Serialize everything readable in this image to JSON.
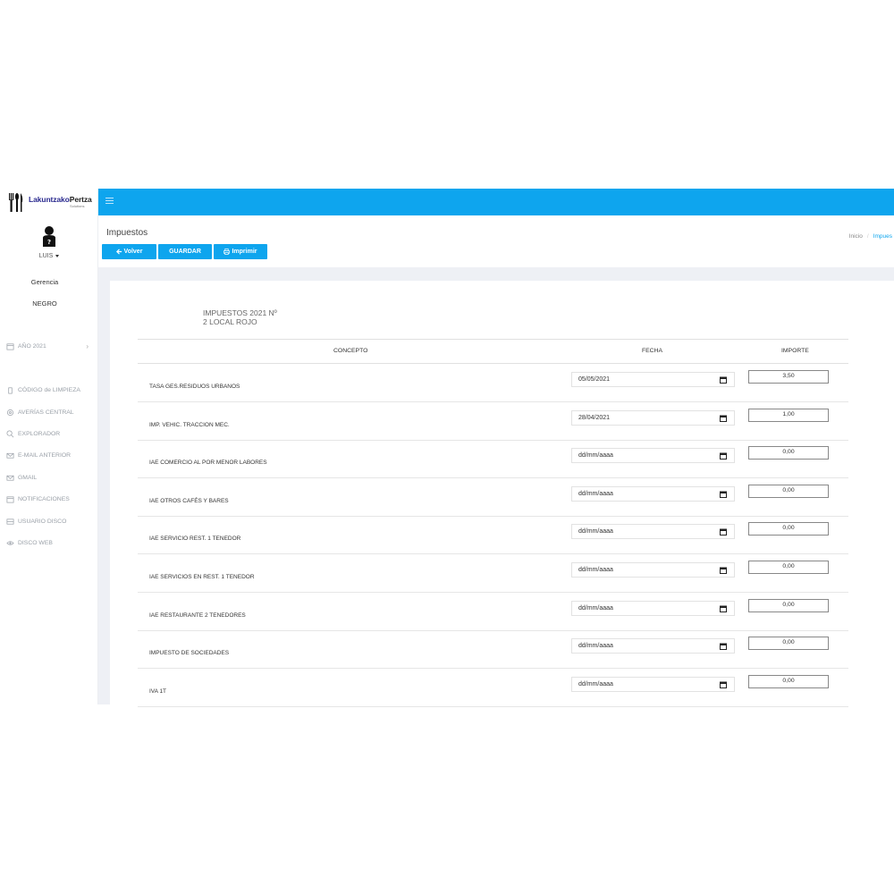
{
  "logo": {
    "part1": "Lakuntzako",
    "part2": "Pertza",
    "sub": "Solutions"
  },
  "user": {
    "name": "LUIS",
    "roles": [
      "Gerencia",
      "NEGRO"
    ]
  },
  "sidebar": {
    "items": [
      {
        "label": "AÑO 2021",
        "icon": "calendar-icon"
      },
      {
        "label": "CÓDIGO de LIMPIEZA",
        "icon": "trash-icon"
      },
      {
        "label": "AVERÍAS CENTRAL",
        "icon": "gear-icon"
      },
      {
        "label": "EXPLORADOR",
        "icon": "search-icon"
      },
      {
        "label": "E-MAIL ANTERIOR",
        "icon": "mail-icon"
      },
      {
        "label": "GMAIL",
        "icon": "mail-icon"
      },
      {
        "label": "NOTIFICACIONES",
        "icon": "calendar-icon"
      },
      {
        "label": "USUARIO DISCO",
        "icon": "drive-icon"
      },
      {
        "label": "DISCO WEB",
        "icon": "eye-icon"
      }
    ]
  },
  "page": {
    "title": "Impuestos",
    "breadcrumb": {
      "home": "Inicio",
      "current": "Impues"
    },
    "buttons": {
      "back": "Volver",
      "save": "GUARDAR",
      "print": "Imprimir"
    }
  },
  "card": {
    "title_line1": "IMPUESTOS 2021 Nº",
    "title_line2": "2 LOCAL ROJO"
  },
  "table": {
    "headers": {
      "concepto": "CONCEPTO",
      "fecha": "FECHA",
      "importe": "IMPORTE"
    },
    "rows": [
      {
        "concepto": "TASA GES.RESIDUOS URBANOS",
        "fecha": "05/05/2021",
        "importe": "3,50"
      },
      {
        "concepto": "IMP. VEHIC. TRACCION MEC.",
        "fecha": "28/04/2021",
        "importe": "1,00"
      },
      {
        "concepto": "IAE COMERCIO AL POR MENOR LABORES",
        "fecha": "dd/mm/aaaa",
        "importe": "0,00"
      },
      {
        "concepto": "IAE OTROS CAFÉS Y BARES",
        "fecha": "dd/mm/aaaa",
        "importe": "0,00"
      },
      {
        "concepto": "IAE SERVICIO REST. 1 TENEDOR",
        "fecha": "dd/mm/aaaa",
        "importe": "0,00"
      },
      {
        "concepto": "IAE SERVICIOS EN REST. 1 TENEDOR",
        "fecha": "dd/mm/aaaa",
        "importe": "0,00"
      },
      {
        "concepto": "IAE RESTAURANTE 2 TENEDORES",
        "fecha": "dd/mm/aaaa",
        "importe": "0,00"
      },
      {
        "concepto": "IMPUESTO DE SOCIEDADES",
        "fecha": "dd/mm/aaaa",
        "importe": "0,00"
      },
      {
        "concepto": "IVA 1T",
        "fecha": "dd/mm/aaaa",
        "importe": "0,00"
      }
    ]
  },
  "colors": {
    "accent": "#0ea5ee",
    "content_bg": "#eef0f5"
  }
}
